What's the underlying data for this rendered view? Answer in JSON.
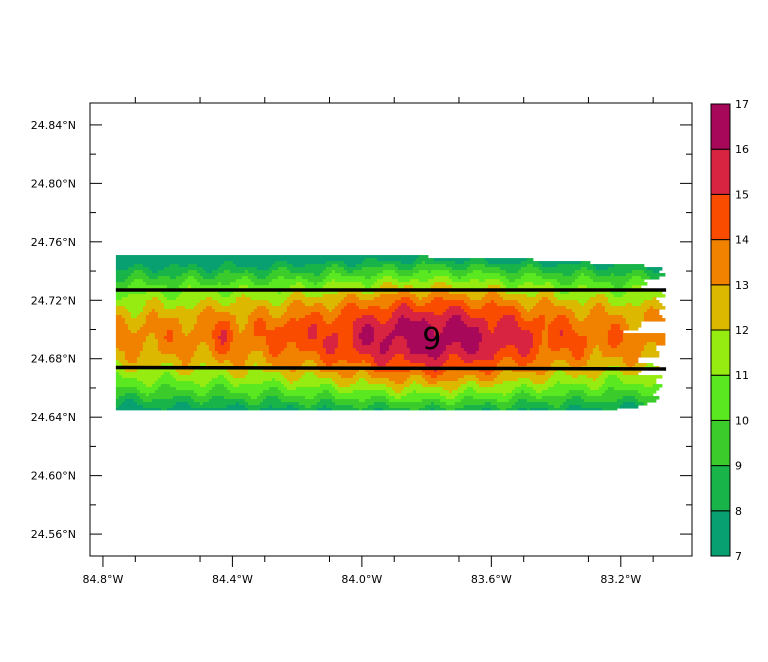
{
  "chart_data": {
    "type": "heatmap",
    "title": "",
    "xlabel": "",
    "ylabel": "",
    "x_ticks": [
      "84.8°W",
      "84.4°W",
      "84.0°W",
      "83.6°W",
      "83.2°W"
    ],
    "y_ticks": [
      "24.84°N",
      "24.80°N",
      "24.76°N",
      "24.72°N",
      "24.68°N",
      "24.64°N",
      "24.60°N",
      "24.56°N"
    ],
    "lon_range": [
      -84.84,
      -82.98
    ],
    "lat_range": [
      24.545,
      24.855
    ],
    "data_lon_range": [
      -84.76,
      -83.06
    ],
    "data_lat_range": [
      24.645,
      24.753
    ],
    "levels": [
      7,
      8,
      9,
      10,
      11,
      12,
      13,
      14,
      15,
      16,
      17
    ],
    "colors": [
      "#08a070",
      "#18b44a",
      "#3bcc2c",
      "#5ae820",
      "#96ec10",
      "#dcb800",
      "#f08200",
      "#fa4c00",
      "#d82440",
      "#a8085a"
    ],
    "track_lines": [
      {
        "lat_start": 24.727,
        "lat_end": 24.727
      },
      {
        "lat_start": 24.674,
        "lat_end": 24.673
      }
    ],
    "center": {
      "lon": -83.79,
      "lat": 24.695,
      "symbol": "9"
    },
    "field_peak": 16.6
  }
}
